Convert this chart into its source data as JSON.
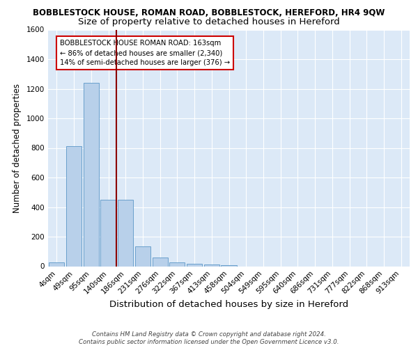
{
  "title": "BOBBLESTOCK HOUSE, ROMAN ROAD, BOBBLESTOCK, HEREFORD, HR4 9QW",
  "subtitle": "Size of property relative to detached houses in Hereford",
  "xlabel": "Distribution of detached houses by size in Hereford",
  "ylabel": "Number of detached properties",
  "footer_line1": "Contains HM Land Registry data © Crown copyright and database right 2024.",
  "footer_line2": "Contains public sector information licensed under the Open Government Licence v3.0.",
  "bin_labels": [
    "4sqm",
    "49sqm",
    "95sqm",
    "140sqm",
    "186sqm",
    "231sqm",
    "276sqm",
    "322sqm",
    "367sqm",
    "413sqm",
    "458sqm",
    "504sqm",
    "549sqm",
    "595sqm",
    "640sqm",
    "686sqm",
    "731sqm",
    "777sqm",
    "822sqm",
    "868sqm",
    "913sqm"
  ],
  "bar_values": [
    25,
    810,
    1240,
    450,
    450,
    135,
    60,
    25,
    15,
    12,
    8,
    0,
    0,
    0,
    0,
    0,
    0,
    0,
    0,
    0,
    0
  ],
  "bar_color": "#b8d0ea",
  "bar_edge_color": "#6aa0cc",
  "vline_color": "#8b0000",
  "annotation_text": "BOBBLESTOCK HOUSE ROMAN ROAD: 163sqm\n← 86% of detached houses are smaller (2,340)\n14% of semi-detached houses are larger (376) →",
  "annotation_box_color": "white",
  "annotation_box_edge_color": "#cc0000",
  "ylim": [
    0,
    1600
  ],
  "yticks": [
    0,
    200,
    400,
    600,
    800,
    1000,
    1200,
    1400,
    1600
  ],
  "plot_bg_color": "#dce9f7",
  "grid_color": "white",
  "title_fontsize": 8.5,
  "subtitle_fontsize": 9.5,
  "xlabel_fontsize": 9.5,
  "ylabel_fontsize": 8.5,
  "tick_fontsize": 7.5
}
